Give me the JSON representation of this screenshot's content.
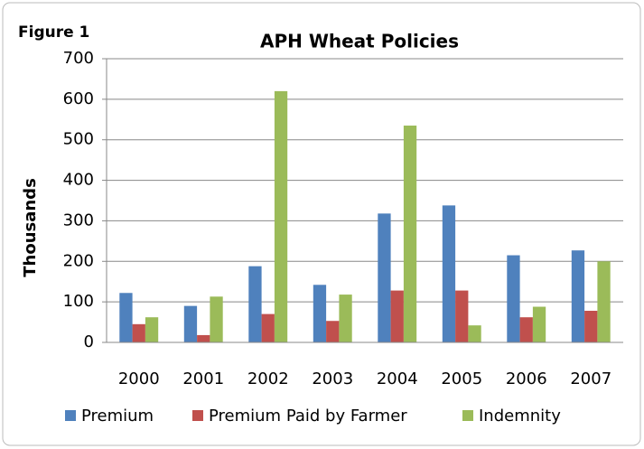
{
  "chart_data": {
    "type": "bar",
    "figure_label": "Figure 1",
    "title": "APH Wheat Policies",
    "y_label": "Thousands",
    "categories": [
      "2000",
      "2001",
      "2002",
      "2003",
      "2004",
      "2005",
      "2006",
      "2007"
    ],
    "series": [
      {
        "name": "Premium",
        "color": "#4f81bd",
        "values": [
          122,
          90,
          188,
          142,
          318,
          338,
          215,
          227
        ]
      },
      {
        "name": "Premium Paid by Farmer",
        "color": "#c0504d",
        "values": [
          45,
          18,
          70,
          53,
          128,
          128,
          62,
          78
        ]
      },
      {
        "name": "Indemnity",
        "color": "#9bbb59",
        "values": [
          62,
          113,
          620,
          118,
          535,
          42,
          88,
          200
        ]
      }
    ],
    "ylim": [
      0,
      700
    ],
    "yticks": [
      0,
      100,
      200,
      300,
      400,
      500,
      600,
      700
    ],
    "grid": true,
    "legend": "bottom"
  }
}
